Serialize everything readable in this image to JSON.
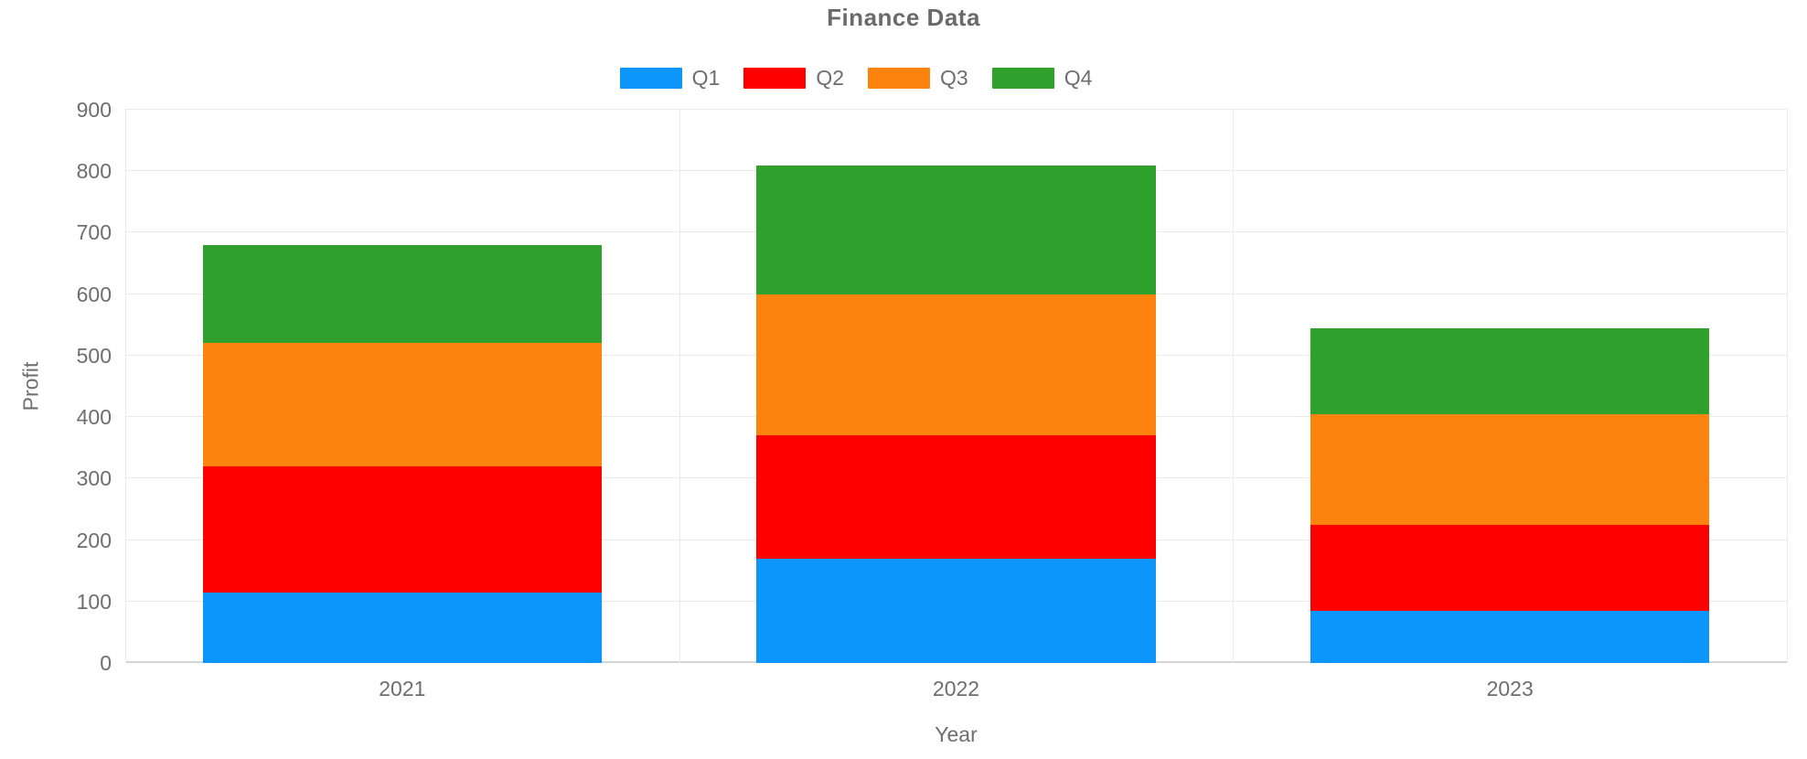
{
  "title": "Finance Data",
  "colors": {
    "grid": "#eaeaea",
    "zero_line": "#d5d5d5",
    "text": "#6e6e6e"
  },
  "chart_data": {
    "type": "bar",
    "stacked": true,
    "title": "Finance Data",
    "xlabel": "Year",
    "ylabel": "Profit",
    "categories": [
      "2021",
      "2022",
      "2023"
    ],
    "series": [
      {
        "name": "Q1",
        "color": "#0d96f9",
        "values": [
          115,
          170,
          85
        ]
      },
      {
        "name": "Q2",
        "color": "#fe0000",
        "values": [
          205,
          200,
          140
        ]
      },
      {
        "name": "Q3",
        "color": "#fc840e",
        "values": [
          200,
          230,
          180
        ]
      },
      {
        "name": "Q4",
        "color": "#2fa12c",
        "values": [
          160,
          210,
          140
        ]
      }
    ],
    "totals": [
      680,
      810,
      545
    ],
    "ylim": [
      0,
      900
    ],
    "yticks": [
      0,
      100,
      200,
      300,
      400,
      500,
      600,
      700,
      800,
      900
    ],
    "legend_position": "top",
    "grid": true,
    "bar_width_fraction": 0.72
  }
}
